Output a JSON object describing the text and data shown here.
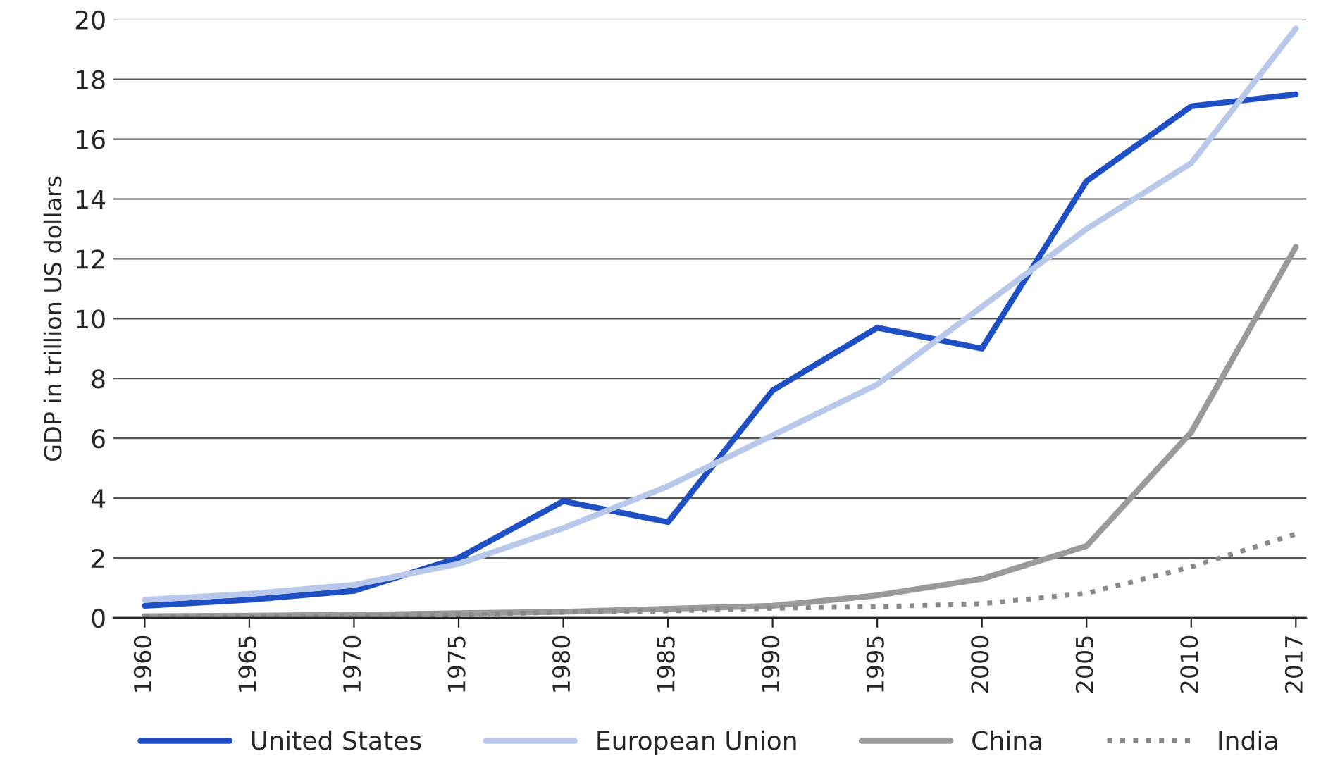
{
  "chart_data": {
    "type": "line",
    "ylabel": "GDP in trillion US dollars",
    "categories": [
      "1960",
      "1965",
      "1970",
      "1975",
      "1980",
      "1985",
      "1990",
      "1995",
      "2000",
      "2005",
      "2010",
      "2017"
    ],
    "series": [
      {
        "name": "United States",
        "color": "#1f4fc4",
        "values": [
          0.4,
          0.6,
          0.9,
          2.0,
          3.9,
          3.2,
          7.6,
          9.7,
          9.0,
          14.6,
          17.1,
          17.5
        ]
      },
      {
        "name": "European Union",
        "color": "#b8c8ea",
        "values": [
          0.6,
          0.8,
          1.1,
          1.8,
          3.0,
          4.4,
          6.1,
          7.8,
          10.4,
          13.0,
          15.2,
          19.7
        ]
      },
      {
        "name": "China",
        "color": "#9a9a98",
        "values": [
          0.05,
          0.07,
          0.1,
          0.15,
          0.2,
          0.3,
          0.4,
          0.75,
          1.3,
          2.4,
          6.2,
          12.4
        ]
      },
      {
        "name": "India",
        "color": "#8a8a8a",
        "line_style": "dotted",
        "values": [
          0.04,
          0.06,
          0.06,
          0.1,
          0.19,
          0.23,
          0.32,
          0.37,
          0.47,
          0.82,
          1.7,
          2.8
        ]
      }
    ],
    "ylim": [
      0,
      20
    ],
    "yticks": [
      0,
      2,
      4,
      6,
      8,
      10,
      12,
      14,
      16,
      18,
      20
    ],
    "grid": "y",
    "legend": "bottom",
    "marker": "none",
    "line_style": "solid"
  }
}
